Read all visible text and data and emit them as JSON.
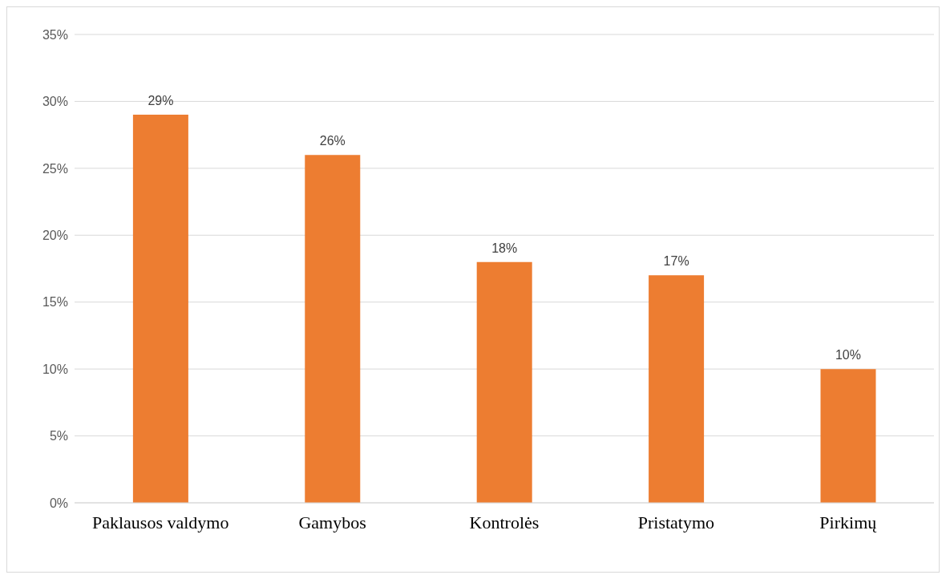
{
  "chart_data": {
    "type": "bar",
    "categories": [
      "Paklausos valdymo",
      "Gamybos",
      "Kontrolės",
      "Pristatymo",
      "Pirkimų"
    ],
    "values": [
      29,
      26,
      18,
      17,
      10
    ],
    "color": "#ed7d31",
    "value_labels": [
      "29%",
      "26%",
      "18%",
      "17%",
      "10%"
    ],
    "ylim": [
      0,
      35
    ],
    "yticks": [
      {
        "value": 0,
        "label": "0%"
      },
      {
        "value": 5,
        "label": "5%"
      },
      {
        "value": 10,
        "label": "10%"
      },
      {
        "value": 15,
        "label": "15%"
      },
      {
        "value": 20,
        "label": "20%"
      },
      {
        "value": 25,
        "label": "25%"
      },
      {
        "value": 30,
        "label": "30%"
      },
      {
        "value": 35,
        "label": "35%"
      }
    ],
    "grid": "y"
  }
}
